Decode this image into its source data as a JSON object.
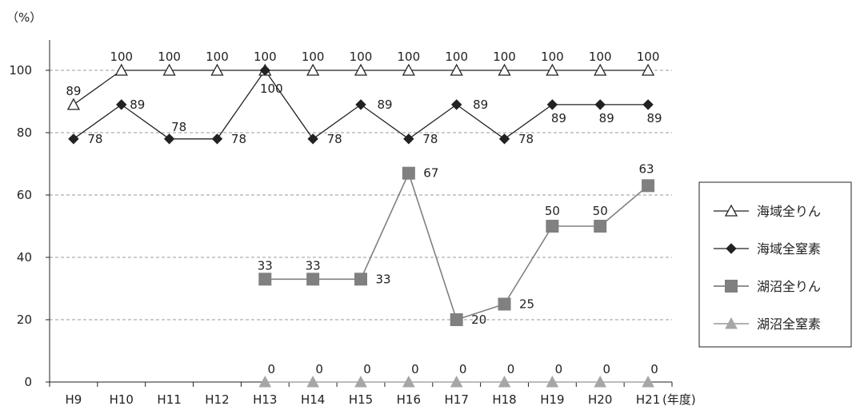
{
  "chart_data": {
    "type": "line",
    "ylabel": "（%）",
    "xlabel": "(年度)",
    "ylim": [
      0,
      100
    ],
    "yticks": [
      0,
      20,
      40,
      60,
      80,
      100
    ],
    "grid": true,
    "legend_position": "right",
    "categories": [
      "H9",
      "H10",
      "H11",
      "H12",
      "H13",
      "H14",
      "H15",
      "H16",
      "H17",
      "H18",
      "H19",
      "H20",
      "H21"
    ],
    "series": [
      {
        "name": "海域全りん",
        "marker": "open-triangle",
        "color": "#222222",
        "values": [
          89,
          100,
          100,
          100,
          100,
          100,
          100,
          100,
          100,
          100,
          100,
          100,
          100
        ],
        "labels": [
          "89",
          "100",
          "100",
          "100",
          "100",
          "100",
          "100",
          "100",
          "100",
          "100",
          "100",
          "100",
          "100"
        ]
      },
      {
        "name": "海域全窒素",
        "marker": "diamond",
        "color": "#222222",
        "values": [
          78,
          89,
          78,
          78,
          100,
          78,
          89,
          78,
          89,
          78,
          89,
          89,
          89
        ],
        "labels": [
          "78",
          "89",
          "78",
          "78",
          "100",
          "78",
          "89",
          "78",
          "89",
          "78",
          "89",
          "89",
          "89"
        ]
      },
      {
        "name": "湖沼全りん",
        "marker": "square",
        "color": "#808080",
        "values": [
          null,
          null,
          null,
          null,
          33,
          33,
          33,
          67,
          20,
          25,
          50,
          50,
          63
        ],
        "labels": [
          null,
          null,
          null,
          null,
          "33",
          "33",
          "33",
          "67",
          "20",
          "25",
          "50",
          "50",
          "63"
        ]
      },
      {
        "name": "湖沼全窒素",
        "marker": "triangle",
        "color": "#a6a6a6",
        "values": [
          null,
          null,
          null,
          null,
          0,
          0,
          0,
          0,
          0,
          0,
          0,
          0,
          0
        ],
        "labels": [
          null,
          null,
          null,
          null,
          "0",
          "0",
          "0",
          "0",
          "0",
          "0",
          "0",
          "0",
          "0"
        ]
      }
    ]
  }
}
